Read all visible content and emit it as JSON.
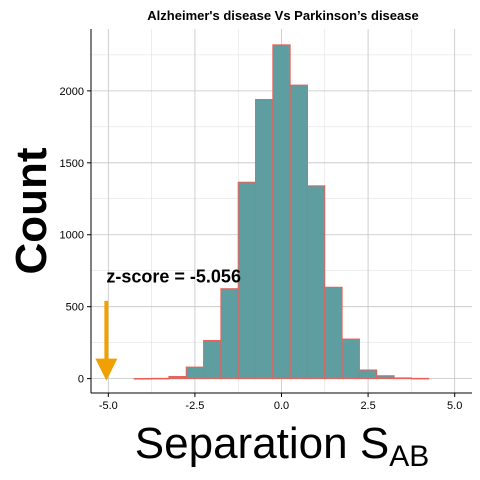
{
  "chart_data": {
    "type": "bar",
    "title": "Alzheimer's disease Vs Parkinson’s disease",
    "xlabel": "Separation S",
    "xlabel_subscript": "AB",
    "ylabel": "Count",
    "xlim": [
      -5.5,
      5.5
    ],
    "ylim": [
      -100,
      2430
    ],
    "x_ticks": [
      -5.0,
      -2.5,
      0.0,
      2.5,
      5.0
    ],
    "x_tick_labels": [
      "-5.0",
      "-2.5",
      "0.0",
      "2.5",
      "5.0"
    ],
    "y_ticks": [
      0,
      500,
      1000,
      1500,
      2000
    ],
    "y_tick_labels": [
      "0",
      "500",
      "1000",
      "1500",
      "2000"
    ],
    "bin_width": 0.5,
    "bins": [
      {
        "center": -4.0,
        "count": 1
      },
      {
        "center": -3.5,
        "count": 2
      },
      {
        "center": -3.0,
        "count": 15
      },
      {
        "center": -2.5,
        "count": 80
      },
      {
        "center": -2.0,
        "count": 265
      },
      {
        "center": -1.5,
        "count": 625
      },
      {
        "center": -1.0,
        "count": 1365
      },
      {
        "center": -0.5,
        "count": 1940
      },
      {
        "center": 0.0,
        "count": 2320
      },
      {
        "center": 0.5,
        "count": 2040
      },
      {
        "center": 1.0,
        "count": 1340
      },
      {
        "center": 1.5,
        "count": 635
      },
      {
        "center": 2.0,
        "count": 275
      },
      {
        "center": 2.5,
        "count": 60
      },
      {
        "center": 3.0,
        "count": 20
      },
      {
        "center": 3.5,
        "count": 5
      },
      {
        "center": 4.0,
        "count": 2
      }
    ],
    "bar_fill": "#5f9ea0",
    "bar_stroke": "#e8615a",
    "grid": true,
    "annotation": {
      "text": "z-score = -5.056",
      "arrow_x": -5.056,
      "arrow_from_y": 540,
      "arrow_to_y": 0,
      "arrow_color": "#f0a000",
      "text_x": -5.056,
      "text_y": 760
    }
  }
}
